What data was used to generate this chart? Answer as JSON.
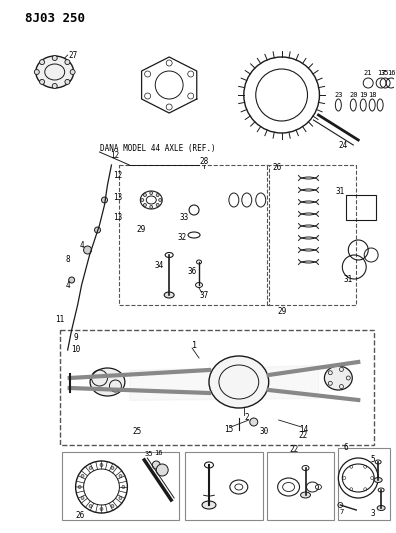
{
  "title": "8J03 250",
  "subtitle": "DANA MODEL 44 AXLE (REF.)",
  "bg_color": "#ffffff",
  "line_color": "#1a1a1a",
  "text_color": "#000000",
  "fig_width": 3.96,
  "fig_height": 5.33,
  "dpi": 100
}
